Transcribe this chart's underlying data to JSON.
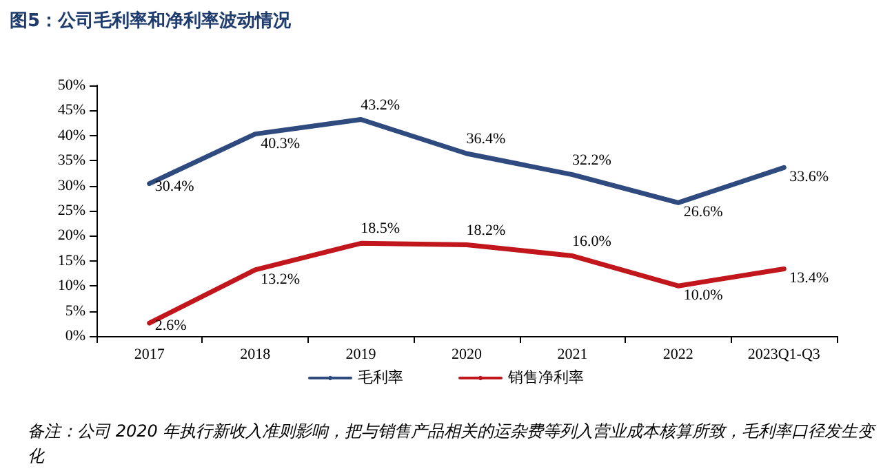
{
  "chart_data": {
    "type": "line",
    "title": "图5：公司毛利率和净利率波动情况",
    "categories": [
      "2017",
      "2018",
      "2019",
      "2020",
      "2021",
      "2022",
      "2023Q1-Q3"
    ],
    "series": [
      {
        "name": "毛利率",
        "color": "#2e4a7e",
        "values": [
          30.4,
          40.3,
          43.2,
          36.4,
          32.2,
          26.6,
          33.6
        ],
        "value_labels": [
          "30.4%",
          "40.3%",
          "43.2%",
          "36.4%",
          "32.2%",
          "26.6%",
          "33.6%"
        ]
      },
      {
        "name": "销售净利率",
        "color": "#c0161c",
        "values": [
          2.6,
          13.2,
          18.5,
          18.2,
          16.0,
          10.0,
          13.4
        ],
        "value_labels": [
          "2.6%",
          "13.2%",
          "18.5%",
          "18.2%",
          "16.0%",
          "10.0%",
          "13.4%"
        ]
      }
    ],
    "ylim": [
      0,
      50
    ],
    "yticks": [
      {
        "value": 0,
        "label": "0%"
      },
      {
        "value": 5,
        "label": "5%"
      },
      {
        "value": 10,
        "label": "10%"
      },
      {
        "value": 15,
        "label": "15%"
      },
      {
        "value": 20,
        "label": "20%"
      },
      {
        "value": 25,
        "label": "25%"
      },
      {
        "value": 30,
        "label": "30%"
      },
      {
        "value": 35,
        "label": "35%"
      },
      {
        "value": 40,
        "label": "40%"
      },
      {
        "value": 45,
        "label": "45%"
      },
      {
        "value": 50,
        "label": "50%"
      }
    ],
    "grid": false,
    "legend": "bottom",
    "marker": "none",
    "line_style": "solid",
    "annotations": [
      "备注：公司 2020 年执行新收入准则影响，把与销售产品相关的运杂费等列入营业成本核算所致，毛利率口径发生变化"
    ]
  }
}
